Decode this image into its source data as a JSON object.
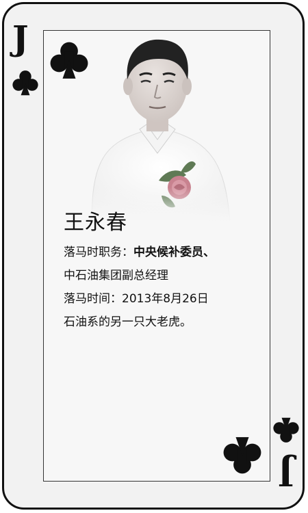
{
  "card": {
    "rank": "J",
    "suit": "clubs",
    "name": "王永春",
    "position_label": "落马时职务：",
    "position_value": "中央候补委员、",
    "position_line2": "中石油集团副总经理",
    "date_label": "落马时间：",
    "date_value": "2013年8月26日",
    "description": "石油系的另一只大老虎。"
  },
  "colors": {
    "ink": "#111111",
    "border": "#111111",
    "card_bg": "#f2f2f2",
    "rose": "#c8828f",
    "leaf": "#5f7a55"
  }
}
